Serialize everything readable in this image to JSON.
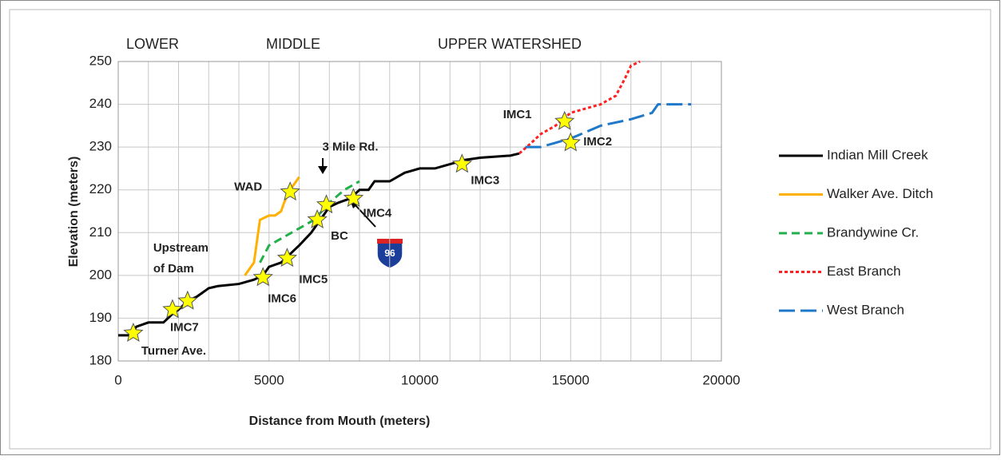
{
  "chart_data": {
    "type": "line",
    "xlabel": "Distance from Mouth (meters)",
    "ylabel": "Elevation (meters)",
    "xlim": [
      0,
      20000
    ],
    "xticks": [
      0,
      5000,
      10000,
      15000,
      20000
    ],
    "x_minor_gridlines": [
      1000,
      2000,
      3000,
      4000,
      6000,
      7000,
      8000,
      9000,
      11000,
      12000,
      13000,
      14000,
      16000,
      17000,
      18000,
      19000
    ],
    "ylim": [
      180,
      250
    ],
    "yticks": [
      180,
      190,
      200,
      210,
      220,
      230,
      240,
      250
    ],
    "grid": true,
    "legend": "right",
    "sections": [
      "LOWER",
      "MIDDLE",
      "UPPER WATERSHED"
    ],
    "shield_label": "96",
    "series": [
      {
        "name": "Indian Mill Creek",
        "color": "#000000",
        "dash": "solid",
        "x": [
          0,
          400,
          600,
          1000,
          1500,
          1800,
          2000,
          2300,
          2600,
          3000,
          3300,
          4000,
          4500,
          4800,
          5000,
          5400,
          5700,
          6000,
          6400,
          6700,
          7000,
          7300,
          7700,
          8000,
          8300,
          8500,
          9000,
          9500,
          10000,
          10500,
          11000,
          11500,
          12000,
          13000,
          13300
        ],
        "values": [
          186,
          186,
          188,
          189,
          189,
          191,
          192,
          194,
          195,
          197,
          197.5,
          198,
          199,
          200,
          202,
          203,
          205,
          207,
          210,
          213,
          216,
          217,
          218,
          220,
          220,
          222,
          222,
          224,
          225,
          225,
          226,
          227,
          227.5,
          228,
          228.5
        ]
      },
      {
        "name": "Walker Ave. Ditch",
        "color": "#ffb000",
        "dash": "solid",
        "x": [
          4200,
          4500,
          4600,
          4700,
          5000,
          5200,
          5400,
          5500,
          5700,
          6000
        ],
        "values": [
          200,
          203,
          208,
          213,
          214,
          214,
          215,
          217,
          220,
          223
        ]
      },
      {
        "name": "Brandywine Cr.",
        "color": "#22b04a",
        "dash": "dash",
        "x": [
          4700,
          5000,
          5500,
          6000,
          6500,
          7000,
          7500,
          8000
        ],
        "values": [
          203,
          207,
          209,
          211,
          213,
          217,
          220,
          222
        ]
      },
      {
        "name": "East Branch",
        "color": "#ff2020",
        "dash": "dot",
        "x": [
          13300,
          13700,
          14000,
          14500,
          15000,
          15500,
          16000,
          16500,
          16800,
          17000,
          17300
        ],
        "values": [
          228.5,
          231,
          233,
          235,
          238,
          239,
          240,
          242,
          246,
          249,
          250
        ]
      },
      {
        "name": "West Branch",
        "color": "#1f78c8",
        "dash": "longdash",
        "x": [
          13500,
          14000,
          14500,
          15000,
          15500,
          16000,
          17000,
          17700,
          17900,
          19000
        ],
        "values": [
          230,
          230,
          231,
          232,
          233.5,
          235,
          236.5,
          238,
          240,
          240
        ]
      }
    ],
    "sites": [
      {
        "label": [
          "Turner Ave."
        ],
        "x": 500,
        "y": 186.5
      },
      {
        "label": [
          "IMC7"
        ],
        "x": 1800,
        "y": 192
      },
      {
        "label": [
          "Upstream",
          "of Dam"
        ],
        "x": 2300,
        "y": 194
      },
      {
        "label": [
          "IMC6"
        ],
        "x": 4800,
        "y": 199.5
      },
      {
        "label": [
          "IMC5"
        ],
        "x": 5600,
        "y": 204
      },
      {
        "label": [
          "BC"
        ],
        "x": 6600,
        "y": 213
      },
      {
        "label": [
          "3 Mile Rd."
        ],
        "x": 6900,
        "y": 216.5
      },
      {
        "label": [
          "IMC4"
        ],
        "x": 7800,
        "y": 218
      },
      {
        "label": [
          "WAD"
        ],
        "x": 5700,
        "y": 219.5
      },
      {
        "label": [
          "IMC3"
        ],
        "x": 11400,
        "y": 226
      },
      {
        "label": [
          "IMC1"
        ],
        "x": 14800,
        "y": 236
      },
      {
        "label": [
          "IMC2"
        ],
        "x": 15000,
        "y": 231
      }
    ]
  }
}
